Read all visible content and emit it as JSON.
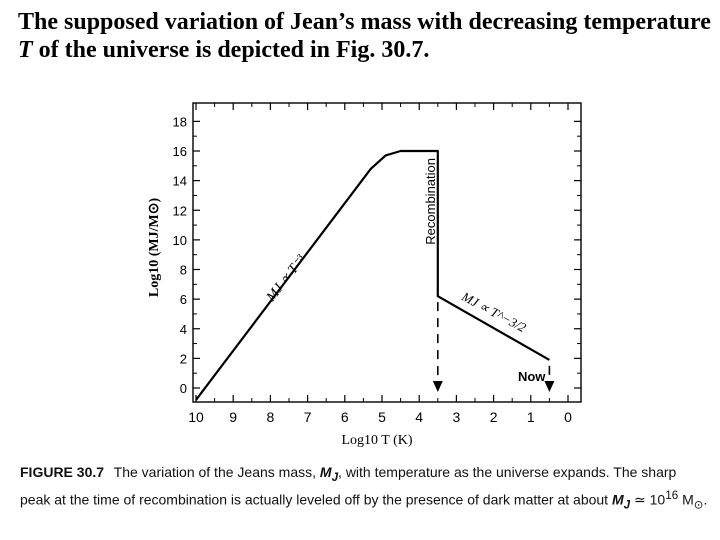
{
  "slide": {
    "heading_part1": "The supposed variation of Jean’s mass with decreasing temperature",
    "heading_var": "T",
    "heading_part2": "of the universe is depicted in Fig. 30.7."
  },
  "caption": {
    "label": "FIGURE 30.7",
    "text1": "The variation of the Jeans mass,",
    "mj": "M",
    "mj_sub": "J",
    "text2": ", with temperature as the universe expands. The sharp peak at the time of recombination is actually leveled off by the presence of dark matter at about",
    "text3": "≃ 10",
    "exp": "16",
    "text4": "M",
    "sun": "⊙",
    "text5": "."
  },
  "chart_data": {
    "type": "line",
    "xlabel": "Log10 T (K)",
    "ylabel": "Log10 (MJ/M⊙)",
    "x_reversed": true,
    "xlim": [
      10,
      0
    ],
    "ylim": [
      -1,
      18.5
    ],
    "x_ticks": [
      "10",
      "9",
      "8",
      "7",
      "6",
      "5",
      "4",
      "3",
      "2",
      "1",
      "0"
    ],
    "y_ticks": [
      "18",
      "16",
      "14",
      "12",
      "10",
      "8",
      "6",
      "4",
      "2",
      "0"
    ],
    "series": [
      {
        "name": "Jeans mass",
        "x": [
          10,
          5.3,
          4.9,
          4.5,
          3.5,
          3.5,
          0.5
        ],
        "y": [
          -0.8,
          14.8,
          15.7,
          16.0,
          16.0,
          6.2,
          1.9
        ]
      }
    ],
    "vertical_marks": [
      {
        "name": "recombination",
        "x": 3.5,
        "y_from": 6.2,
        "y_to": -0.2
      },
      {
        "name": "now",
        "x": 0.5,
        "y_from": 1.9,
        "y_to": -0.2
      }
    ],
    "annotations": {
      "recombination": "Recombination",
      "now": "Now",
      "slope1": "MJ ∝ T⁻³",
      "slope2": "MJ ∝ T^−3/2"
    }
  }
}
